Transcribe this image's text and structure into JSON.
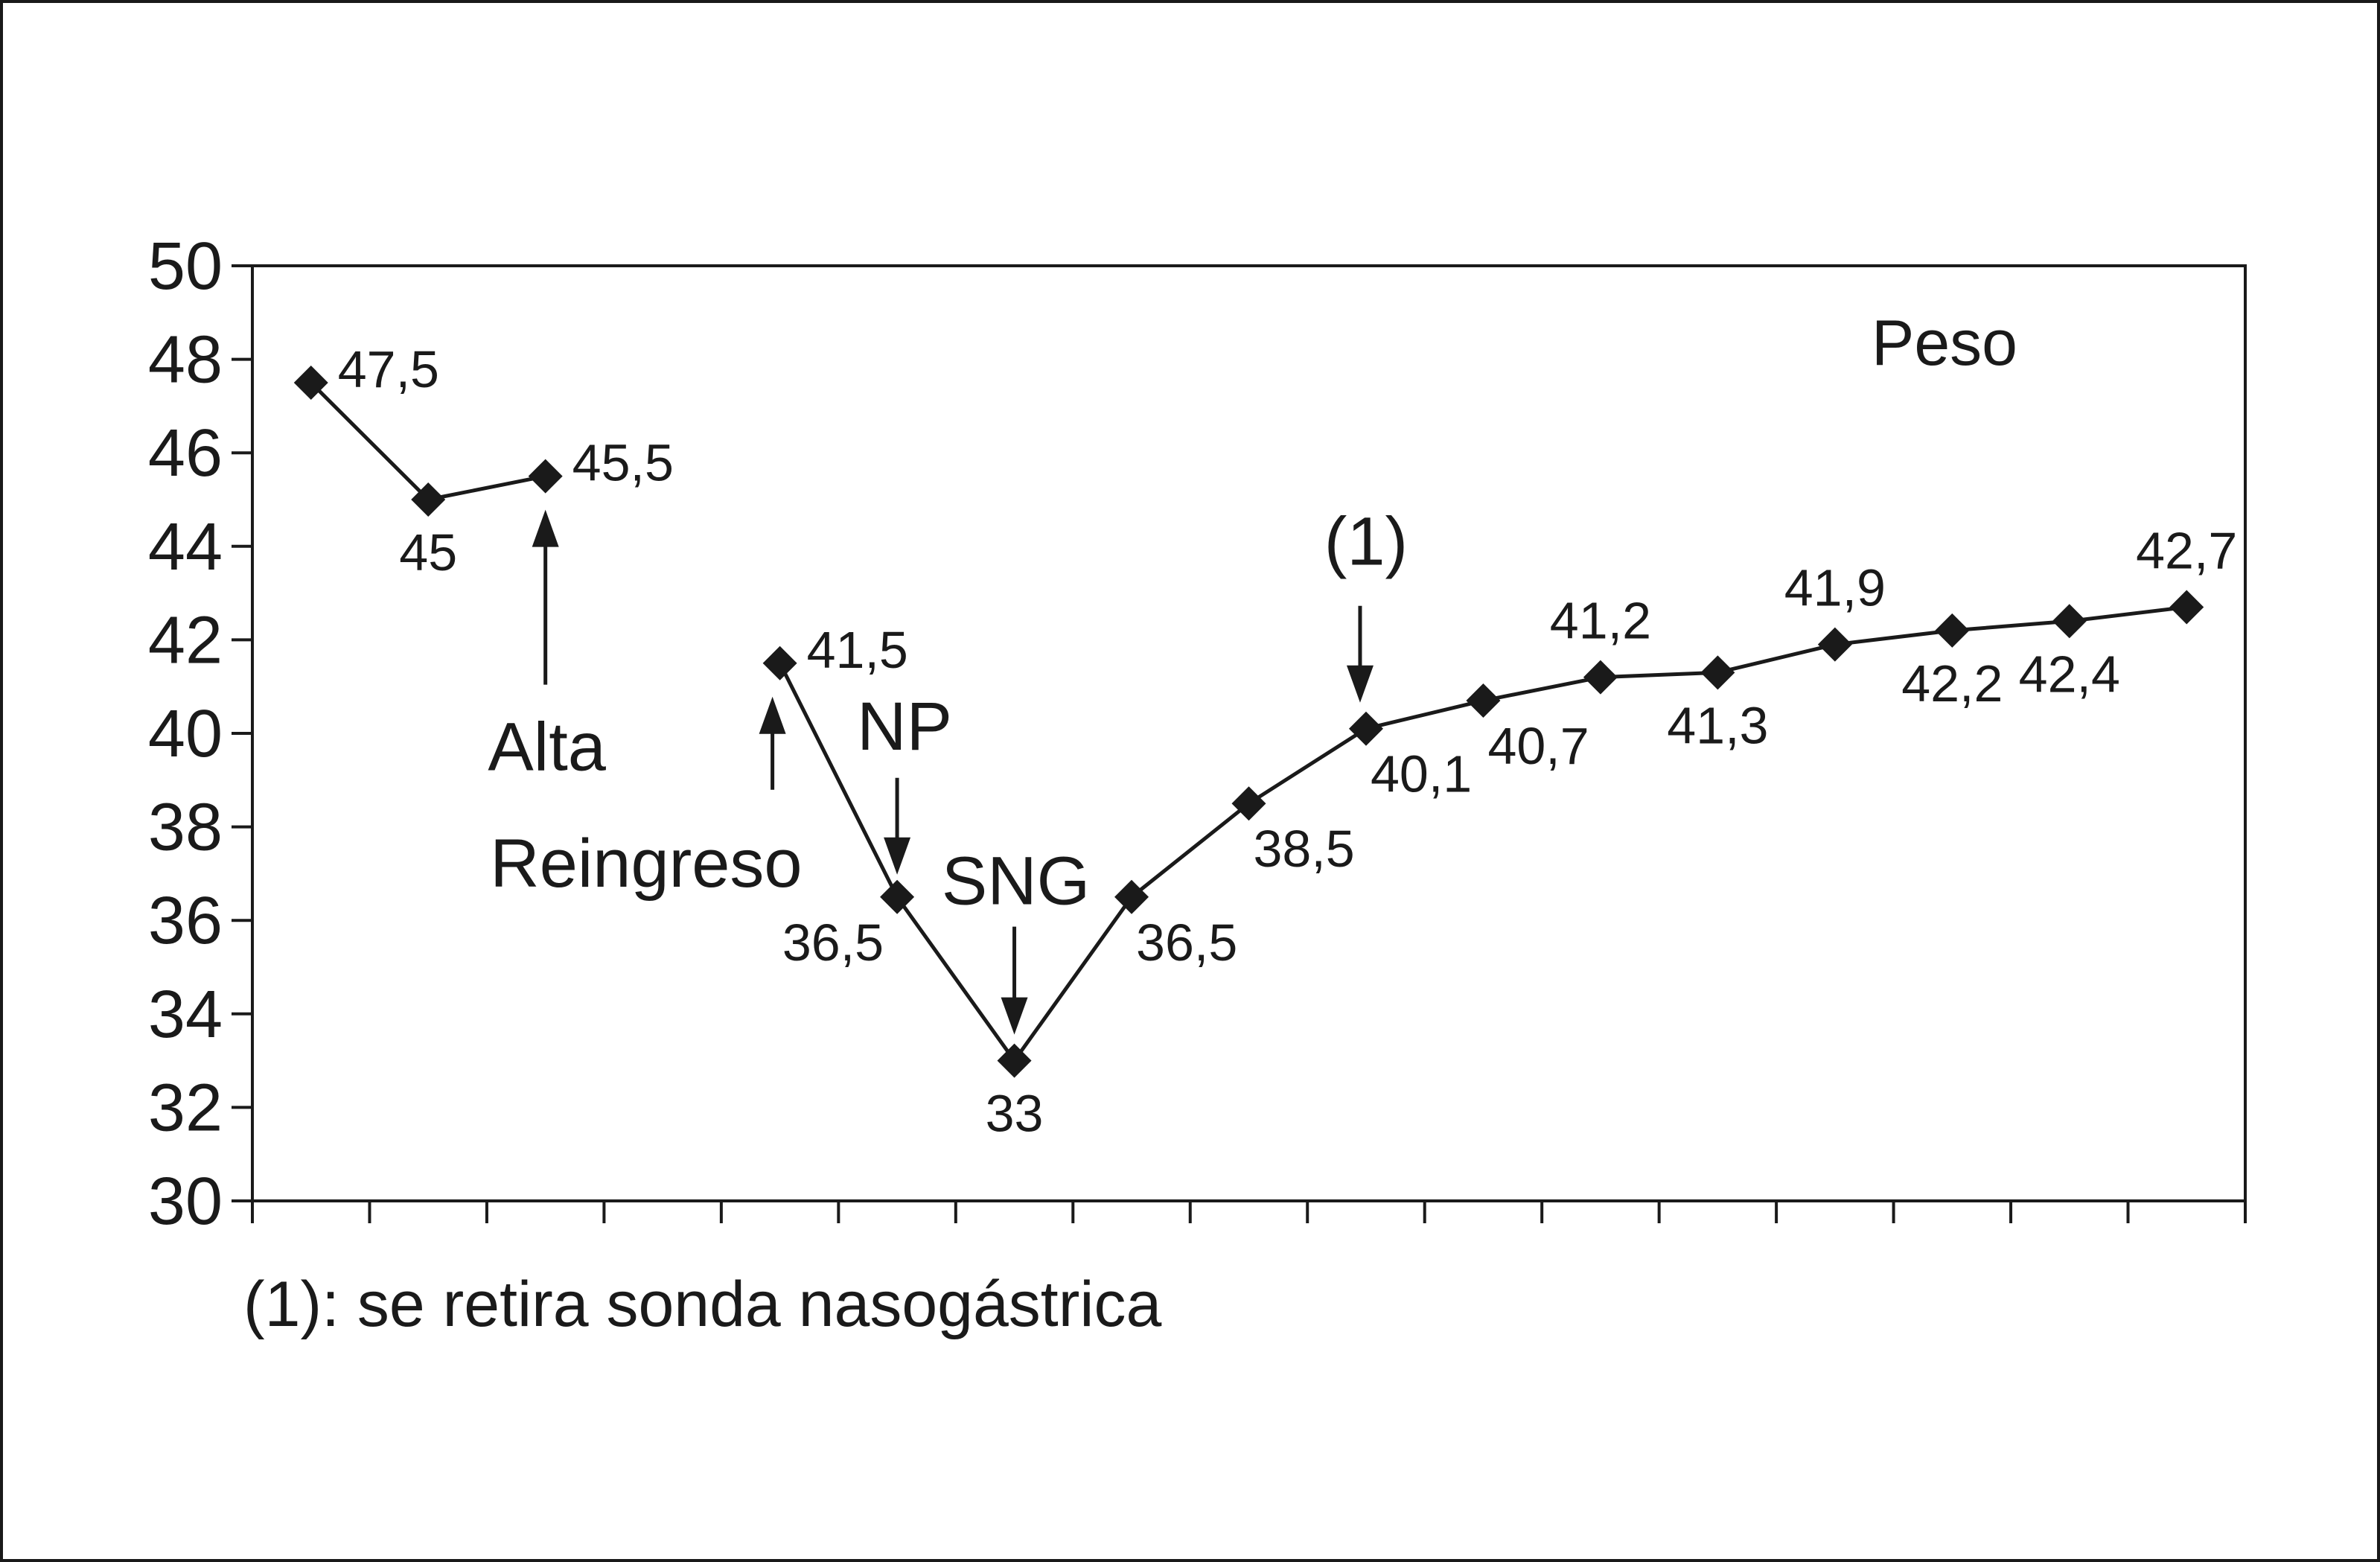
{
  "chart_data": {
    "type": "line",
    "title": "",
    "xlabel": "",
    "ylabel": "",
    "ylim": [
      30,
      50
    ],
    "yticks": [
      "30",
      "32",
      "34",
      "36",
      "38",
      "40",
      "42",
      "44",
      "46",
      "48",
      "50"
    ],
    "x_slots": 17,
    "grid": false,
    "legend": {
      "text": "Peso",
      "placement": "top-right"
    },
    "series": [
      {
        "name": "Peso",
        "segments": [
          {
            "points": [
              {
                "x": 0.5,
                "y": 47.5,
                "label": "47,5",
                "label_pos": "right"
              },
              {
                "x": 1.5,
                "y": 45,
                "label": "45",
                "label_pos": "below"
              },
              {
                "x": 2.5,
                "y": 45.5,
                "label": "45,5",
                "label_pos": "right"
              }
            ]
          },
          {
            "points": [
              {
                "x": 4.5,
                "y": 41.5,
                "label": "41,5",
                "label_pos": "right"
              },
              {
                "x": 5.5,
                "y": 36.5,
                "label": "36,5",
                "label_pos": "below-left"
              },
              {
                "x": 6.5,
                "y": 33,
                "label": "33",
                "label_pos": "below"
              },
              {
                "x": 7.5,
                "y": 36.5,
                "label": "36,5",
                "label_pos": "below-right"
              },
              {
                "x": 8.5,
                "y": 38.5,
                "label": "38,5",
                "label_pos": "below-right"
              },
              {
                "x": 9.5,
                "y": 40.1,
                "label": "40,1",
                "label_pos": "below-right"
              },
              {
                "x": 10.5,
                "y": 40.7,
                "label": "40,7",
                "label_pos": "below-right"
              },
              {
                "x": 11.5,
                "y": 41.2,
                "label": "41,2",
                "label_pos": "above"
              },
              {
                "x": 12.5,
                "y": 41.3,
                "label": "41,3",
                "label_pos": "below"
              },
              {
                "x": 13.5,
                "y": 41.9,
                "label": "41,9",
                "label_pos": "above"
              },
              {
                "x": 14.5,
                "y": 42.2,
                "label": "42,2",
                "label_pos": "below"
              },
              {
                "x": 15.5,
                "y": 42.4,
                "label": "42,4",
                "label_pos": "below"
              },
              {
                "x": 16.5,
                "y": 42.7,
                "label": "42,7",
                "label_pos": "above"
              }
            ]
          }
        ]
      }
    ],
    "annotations": [
      {
        "text": "Alta",
        "at_x": 2.5,
        "direction": "up"
      },
      {
        "text": "Reingreso",
        "at_x": 4.5,
        "direction": "up"
      },
      {
        "text": "NP",
        "at_x": 5.5,
        "direction": "down"
      },
      {
        "text": "SNG",
        "at_x": 6.5,
        "direction": "down"
      },
      {
        "text": "(1)",
        "at_x": 9.5,
        "direction": "down"
      }
    ],
    "footnote": "(1): se retira sonda nasogástrica"
  }
}
